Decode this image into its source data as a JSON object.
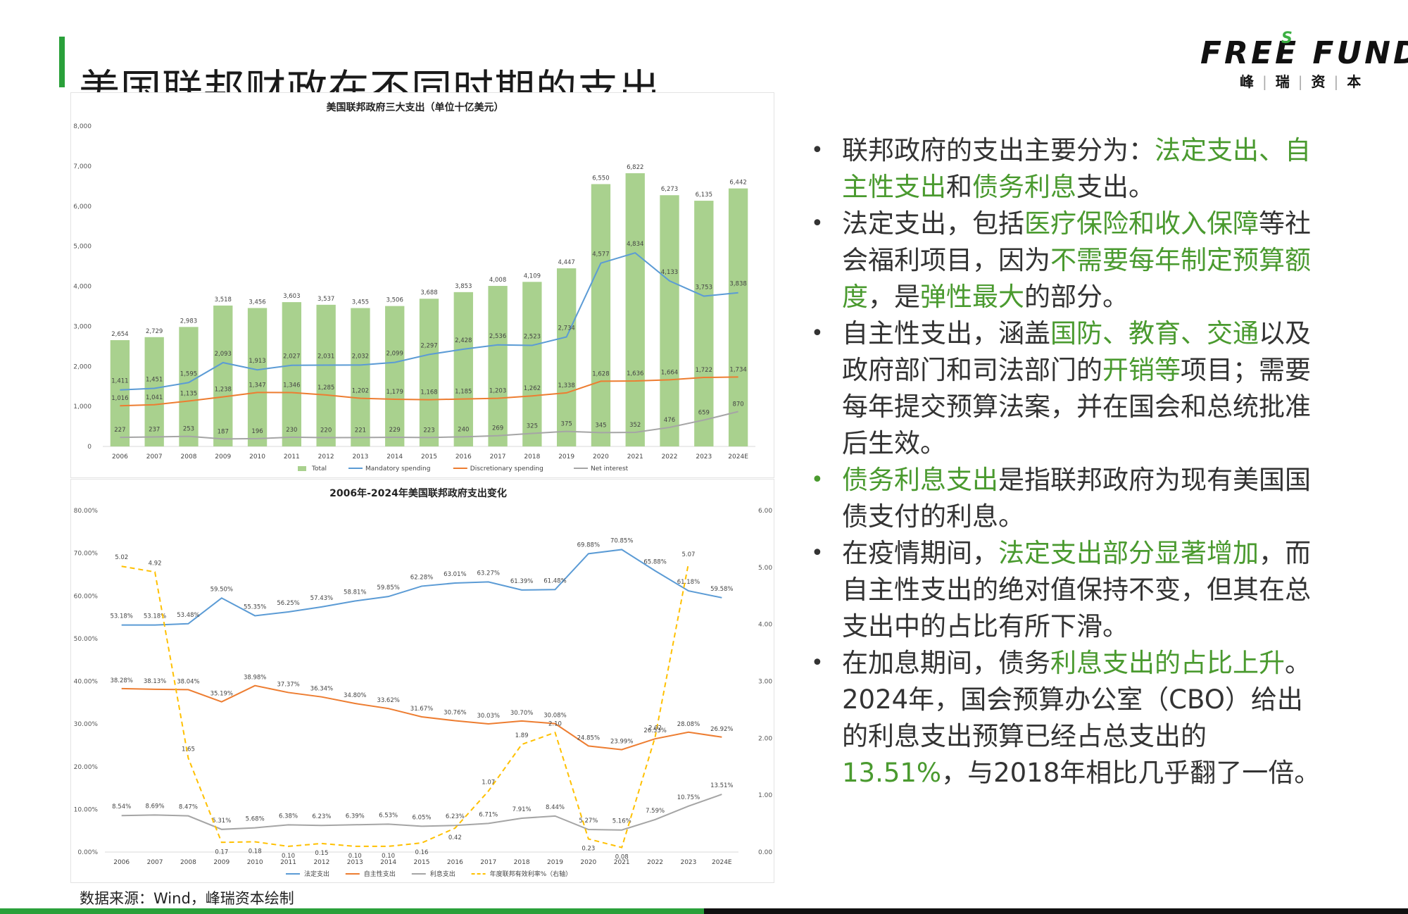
{
  "page": {
    "title": "美国联邦财政在不同时期的支出",
    "source": "数据来源：Wind，峰瑞资本绘制"
  },
  "logo": {
    "main": "FREE FUND",
    "superscript": "S",
    "sub": [
      "峰",
      "瑞",
      "资",
      "本"
    ]
  },
  "bullets": [
    [
      {
        "t": "联邦政府的支出主要分为："
      },
      {
        "t": "法定支出、自主性支出",
        "h": true
      },
      {
        "t": "和"
      },
      {
        "t": "债务利息",
        "h": true
      },
      {
        "t": "支出。"
      }
    ],
    [
      {
        "t": "法定支出，包括"
      },
      {
        "t": "医疗保险和收入保障",
        "h": true
      },
      {
        "t": "等社会福利项目，因为"
      },
      {
        "t": "不需要每年制定预算额度",
        "h": true
      },
      {
        "t": "，是"
      },
      {
        "t": "弹性最大",
        "h": true
      },
      {
        "t": "的部分。"
      }
    ],
    [
      {
        "t": "自主性支出，涵盖"
      },
      {
        "t": "国防、教育、交通",
        "h": true
      },
      {
        "t": "以及政府部门和司法部门的"
      },
      {
        "t": "开销等",
        "h": true
      },
      {
        "t": "项目；需要每年提交预算法案，并在国会和总统批准后生效。"
      }
    ],
    [
      {
        "t": "债务利息支出",
        "h": true
      },
      {
        "t": "是指联邦政府为现有美国国债支付的利息。"
      }
    ],
    [
      {
        "t": "在疫情期间，"
      },
      {
        "t": "法定支出部分显著增加",
        "h": true
      },
      {
        "t": "，而自主性支出的绝对值保持不变，但其在总支出中的占比有所下滑。"
      }
    ],
    [
      {
        "t": "在加息期间，债务"
      },
      {
        "t": "利息支出的占比上升",
        "h": true
      },
      {
        "t": "。2024年，国会预算办公室（CBO）给出的利息支出预算已经占总支出的"
      },
      {
        "t": "13.51%",
        "h": true
      },
      {
        "t": "，与2018年相比几乎翻了一倍。"
      }
    ]
  ],
  "bullet_dot_colors": [
    "#333333",
    "#333333",
    "#333333",
    "#4a9a2f",
    "#333333",
    "#333333"
  ],
  "colors": {
    "accent_green": "#2aa03a",
    "highlight_green": "#4a9a2f",
    "bar_green": "#a9d18e",
    "blue": "#5b9bd5",
    "orange": "#ed7d31",
    "gray": "#a5a5a5",
    "yellow": "#ffc000"
  },
  "chart_data": [
    {
      "type": "bar",
      "title": "美国联邦政府三大支出（单位十亿美元）",
      "categories": [
        "2006",
        "2007",
        "2008",
        "2009",
        "2010",
        "2011",
        "2012",
        "2013",
        "2014",
        "2015",
        "2016",
        "2017",
        "2018",
        "2019",
        "2020",
        "2021",
        "2022",
        "2023",
        "2024E"
      ],
      "ylim": [
        0,
        8000
      ],
      "yticks": [
        "0",
        "1,000",
        "2,000",
        "3,000",
        "4,000",
        "5,000",
        "6,000",
        "7,000",
        "8,000"
      ],
      "ytick_values": [
        0,
        1000,
        2000,
        3000,
        4000,
        5000,
        6000,
        7000,
        8000
      ],
      "series": [
        {
          "name": "Total",
          "kind": "bar",
          "color": "#a9d18e",
          "values": [
            2654,
            2729,
            2983,
            3518,
            3456,
            3603,
            3537,
            3455,
            3506,
            3688,
            3853,
            4008,
            4109,
            4447,
            6550,
            6822,
            6273,
            6135,
            6442
          ],
          "labels": [
            "2,654",
            "2,729",
            "2,983",
            "3,518",
            "3,456",
            "3,603",
            "3,537",
            "3,455",
            "3,506",
            "3,688",
            "3,853",
            "4,008",
            "4,109",
            "4,447",
            "6,550",
            "6,822",
            "6,273",
            "6,135",
            "6,442"
          ]
        },
        {
          "name": "Mandatory spending",
          "kind": "line",
          "color": "#5b9bd5",
          "values": [
            1411,
            1451,
            1595,
            2093,
            1913,
            2027,
            2031,
            2032,
            2099,
            2297,
            2428,
            2536,
            2523,
            2734,
            4577,
            4834,
            4133,
            3753,
            3838
          ],
          "labels": [
            "1,411",
            "1,451",
            "1,595",
            "2,093",
            "1,913",
            "2,027",
            "2,031",
            "2,032",
            "2,099",
            "2,297",
            "2,428",
            "2,536",
            "2,523",
            "2,734",
            "4,577",
            "4,834",
            "4,133",
            "3,753",
            "3,838"
          ]
        },
        {
          "name": "Discretionary spending",
          "kind": "line",
          "color": "#ed7d31",
          "values": [
            1016,
            1041,
            1135,
            1238,
            1347,
            1346,
            1285,
            1202,
            1179,
            1168,
            1185,
            1203,
            1262,
            1338,
            1628,
            1636,
            1664,
            1722,
            1734
          ],
          "labels": [
            "1,016",
            "1,041",
            "1,135",
            "1,238",
            "1,347",
            "1,346",
            "1,285",
            "1,202",
            "1,179",
            "1,168",
            "1,185",
            "1,203",
            "1,262",
            "1,338",
            "1,628",
            "1,636",
            "1,664",
            "1,722",
            "1,734"
          ]
        },
        {
          "name": "Net interest",
          "kind": "line",
          "color": "#a5a5a5",
          "values": [
            227,
            237,
            253,
            187,
            196,
            230,
            220,
            221,
            229,
            223,
            240,
            269,
            325,
            375,
            345,
            352,
            476,
            659,
            870
          ],
          "labels": [
            "227",
            "237",
            "253",
            "187",
            "196",
            "230",
            "220",
            "221",
            "229",
            "223",
            "240",
            "269",
            "325",
            "375",
            "345",
            "352",
            "476",
            "659",
            "870"
          ]
        }
      ],
      "legend": "bottom"
    },
    {
      "type": "line",
      "title": "2006年-2024年美国联邦政府支出变化",
      "categories": [
        "2006",
        "2007",
        "2008",
        "2009",
        "2010",
        "2011",
        "2012",
        "2013",
        "2014",
        "2015",
        "2016",
        "2017",
        "2018",
        "2019",
        "2020",
        "2021",
        "2022",
        "2023",
        "2024E"
      ],
      "ylim": [
        0,
        80
      ],
      "yticks": [
        "0.00%",
        "10.00%",
        "20.00%",
        "30.00%",
        "40.00%",
        "50.00%",
        "60.00%",
        "70.00%",
        "80.00%"
      ],
      "ytick_values": [
        0,
        10,
        20,
        30,
        40,
        50,
        60,
        70,
        80
      ],
      "y2lim": [
        0,
        6
      ],
      "y2ticks": [
        "0.00",
        "1.00",
        "2.00",
        "3.00",
        "4.00",
        "5.00",
        "6.00"
      ],
      "y2tick_values": [
        0,
        1,
        2,
        3,
        4,
        5,
        6
      ],
      "series": [
        {
          "name": "法定支出",
          "axis": "left",
          "color": "#5b9bd5",
          "dash": false,
          "values": [
            53.18,
            53.18,
            53.48,
            59.5,
            55.35,
            56.25,
            57.43,
            58.81,
            59.85,
            62.28,
            63.01,
            63.27,
            61.39,
            61.48,
            69.88,
            70.85,
            65.88,
            61.18,
            59.58
          ],
          "labels": [
            "53.18%",
            "53.18%",
            "53.48%",
            "59.50%",
            "55.35%",
            "56.25%",
            "57.43%",
            "58.81%",
            "59.85%",
            "62.28%",
            "63.01%",
            "63.27%",
            "61.39%",
            "61.48%",
            "69.88%",
            "70.85%",
            "65.88%",
            "61.18%",
            "59.58%"
          ]
        },
        {
          "name": "自主性支出",
          "axis": "left",
          "color": "#ed7d31",
          "dash": false,
          "values": [
            38.28,
            38.13,
            38.04,
            35.19,
            38.98,
            37.37,
            36.34,
            34.8,
            33.62,
            31.67,
            30.76,
            30.03,
            30.7,
            30.08,
            24.85,
            23.99,
            26.53,
            28.08,
            26.92
          ],
          "labels": [
            "38.28%",
            "38.13%",
            "38.04%",
            "35.19%",
            "38.98%",
            "37.37%",
            "36.34%",
            "34.80%",
            "33.62%",
            "31.67%",
            "30.76%",
            "30.03%",
            "30.70%",
            "30.08%",
            "24.85%",
            "23.99%",
            "26.53%",
            "28.08%",
            "26.92%"
          ]
        },
        {
          "name": "利息支出",
          "axis": "left",
          "color": "#a5a5a5",
          "dash": false,
          "values": [
            8.54,
            8.69,
            8.47,
            5.31,
            5.68,
            6.38,
            6.23,
            6.39,
            6.53,
            6.05,
            6.23,
            6.71,
            7.91,
            8.44,
            5.27,
            5.16,
            7.59,
            10.75,
            13.51
          ],
          "labels": [
            "8.54%",
            "8.69%",
            "8.47%",
            "5.31%",
            "5.68%",
            "6.38%",
            "6.23%",
            "6.39%",
            "6.53%",
            "6.05%",
            "6.23%",
            "6.71%",
            "7.91%",
            "8.44%",
            "5.27%",
            "5.16%",
            "7.59%",
            "10.75%",
            "13.51%"
          ]
        },
        {
          "name": "年度联邦有效利率%（右轴）",
          "axis": "right",
          "color": "#ffc000",
          "dash": true,
          "values": [
            5.02,
            4.92,
            1.65,
            0.17,
            0.18,
            0.1,
            0.15,
            0.1,
            0.1,
            0.16,
            0.42,
            1.07,
            1.89,
            2.1,
            0.23,
            0.08,
            2.02,
            5.07,
            null
          ],
          "labels": [
            "5.02",
            "4.92",
            "1.65",
            "0.17",
            "0.18",
            "0.10",
            "0.15",
            "0.10",
            "0.10",
            "0.16",
            "0.42",
            "1.07",
            "1.89",
            "2.10",
            "0.23",
            "0.08",
            "2.02",
            "5.07",
            ""
          ]
        }
      ],
      "legend": "bottom"
    }
  ]
}
